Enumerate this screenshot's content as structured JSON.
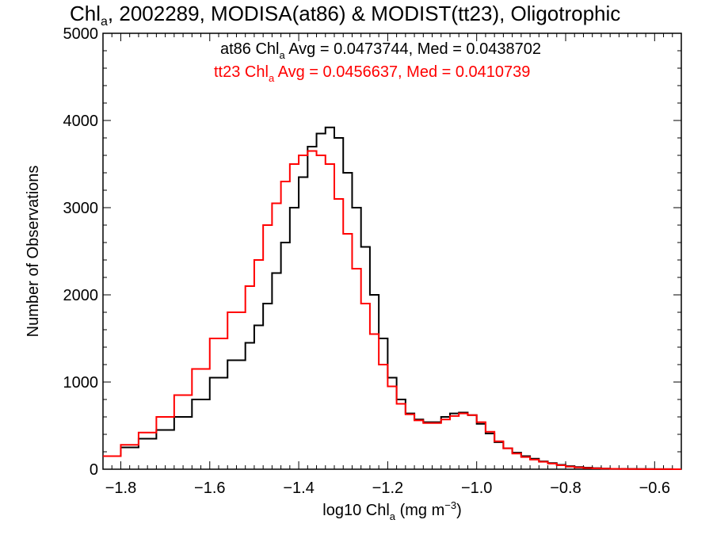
{
  "chart_data": {
    "type": "line",
    "title": {
      "prefix": "Chl",
      "sub": "a",
      "rest": ", 2002289, MODISA(at86) & MODIST(tt23), Oligotrophic"
    },
    "xlabel": {
      "prefix": "log10 Chl",
      "sub": "a",
      "unit_pre": " (mg m",
      "sup": "−3",
      "unit_post": ")"
    },
    "ylabel": "Number of Observations",
    "xlim": [
      -1.84,
      -0.54
    ],
    "ylim": [
      0,
      5000
    ],
    "xticks": [
      -1.8,
      -1.6,
      -1.4,
      -1.2,
      -1.0,
      -0.8,
      -0.6
    ],
    "xtick_labels": [
      "−1.8",
      "−1.6",
      "−1.4",
      "−1.2",
      "−1.0",
      "−0.8",
      "−0.6"
    ],
    "yticks": [
      0,
      1000,
      2000,
      3000,
      4000,
      5000
    ],
    "ytick_labels": [
      "0",
      "1000",
      "2000",
      "3000",
      "4000",
      "5000"
    ],
    "grid": false,
    "legend_placement": "top-center",
    "series": [
      {
        "name": "at86",
        "color": "#000000",
        "stats": {
          "prefix": "at86 Chl",
          "sub": "a",
          "rest": " Avg = 0.0473744, Med = 0.0438702"
        },
        "x": [
          -1.84,
          -1.8,
          -1.76,
          -1.72,
          -1.68,
          -1.64,
          -1.6,
          -1.56,
          -1.52,
          -1.5,
          -1.48,
          -1.46,
          -1.44,
          -1.42,
          -1.4,
          -1.38,
          -1.36,
          -1.34,
          -1.32,
          -1.3,
          -1.28,
          -1.26,
          -1.24,
          -1.22,
          -1.2,
          -1.18,
          -1.16,
          -1.14,
          -1.12,
          -1.1,
          -1.08,
          -1.06,
          -1.04,
          -1.02,
          -1.0,
          -0.98,
          -0.96,
          -0.94,
          -0.92,
          -0.9,
          -0.88,
          -0.86,
          -0.84,
          -0.82,
          -0.8,
          -0.78,
          -0.76,
          -0.74,
          -0.72,
          -0.7,
          -0.68,
          -0.66,
          -0.64,
          -0.62,
          -0.6,
          -0.58,
          -0.56,
          -0.54
        ],
        "y": [
          150,
          250,
          350,
          450,
          600,
          800,
          1050,
          1250,
          1450,
          1650,
          1900,
          2250,
          2600,
          3000,
          3350,
          3700,
          3850,
          3920,
          3800,
          3400,
          3000,
          2550,
          2000,
          1500,
          1050,
          800,
          640,
          570,
          540,
          540,
          600,
          640,
          650,
          620,
          520,
          410,
          310,
          240,
          190,
          150,
          120,
          90,
          70,
          50,
          35,
          25,
          18,
          12,
          8,
          5,
          4,
          3,
          2,
          2,
          1,
          1,
          0,
          0
        ]
      },
      {
        "name": "tt23",
        "color": "#ff0000",
        "stats": {
          "prefix": "tt23 Chl",
          "sub": "a",
          "rest": " Avg = 0.0456637, Med = 0.0410739"
        },
        "x": [
          -1.84,
          -1.8,
          -1.76,
          -1.72,
          -1.68,
          -1.64,
          -1.6,
          -1.56,
          -1.52,
          -1.5,
          -1.48,
          -1.46,
          -1.44,
          -1.42,
          -1.4,
          -1.38,
          -1.36,
          -1.34,
          -1.32,
          -1.3,
          -1.28,
          -1.26,
          -1.24,
          -1.22,
          -1.2,
          -1.18,
          -1.16,
          -1.14,
          -1.12,
          -1.1,
          -1.08,
          -1.06,
          -1.04,
          -1.02,
          -1.0,
          -0.98,
          -0.96,
          -0.94,
          -0.92,
          -0.9,
          -0.88,
          -0.86,
          -0.84,
          -0.82,
          -0.8,
          -0.78,
          -0.76,
          -0.74,
          -0.72,
          -0.7,
          -0.68,
          -0.66,
          -0.64,
          -0.62,
          -0.6,
          -0.58,
          -0.56,
          -0.54
        ],
        "y": [
          150,
          280,
          420,
          600,
          850,
          1150,
          1500,
          1800,
          2100,
          2400,
          2800,
          3050,
          3300,
          3500,
          3600,
          3650,
          3600,
          3500,
          3100,
          2700,
          2300,
          1900,
          1550,
          1200,
          950,
          750,
          630,
          560,
          530,
          530,
          570,
          610,
          640,
          620,
          540,
          430,
          320,
          240,
          180,
          140,
          110,
          85,
          65,
          45,
          30,
          20,
          14,
          10,
          7,
          5,
          3,
          2,
          2,
          1,
          1,
          1,
          0,
          0
        ]
      }
    ]
  }
}
